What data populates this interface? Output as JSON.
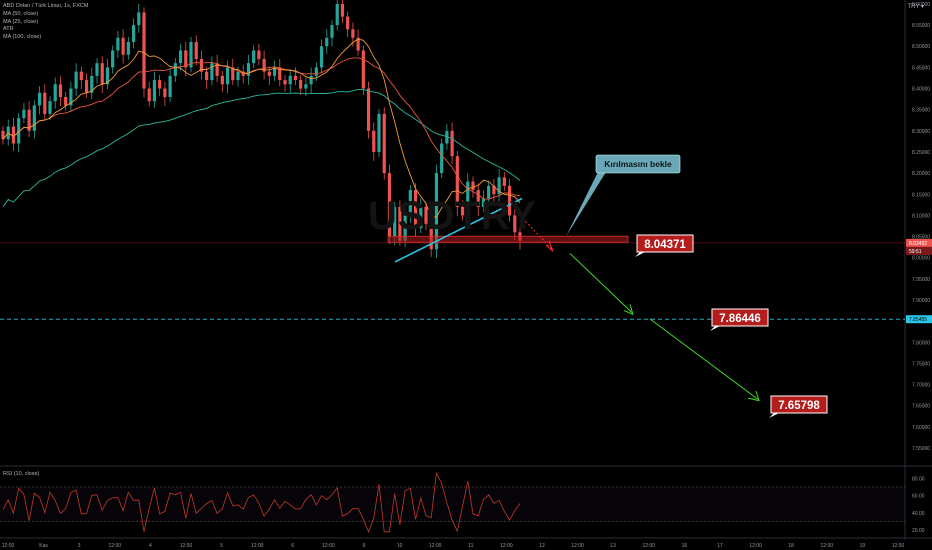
{
  "header": {
    "symbol": "ABD Doları / Türk Lirası, 1s, FXCM",
    "indicators": [
      "MA (50, close)",
      "MA (25, close)",
      "ATR",
      "MA (100, close)"
    ],
    "currency": "TRY"
  },
  "watermark": "USDTRY",
  "rsi_label": "RSI (10, close)",
  "colors": {
    "background": "#000000",
    "up": "#26a69a",
    "down": "#ef5350",
    "ma50": "#e8553d",
    "ma25": "#f29b38",
    "ma100": "#2bb89b",
    "trendline": "#29c6e8",
    "target_arrow": "#3fd926",
    "break_arrow": "#ff2b2b",
    "label_bg": "#b51c1c",
    "callout": "#6aa8b8"
  },
  "chart_data": [
    {
      "type": "candlestick",
      "title": "ABD Doları / Türk Lirası, 1s, FXCM",
      "ylim": [
        7.53,
        8.65
      ],
      "y_ticks": [
        7.55,
        7.6,
        7.65,
        7.7,
        7.75,
        7.8,
        7.85,
        7.9,
        7.95,
        8.0,
        8.05,
        8.1,
        8.15,
        8.2,
        8.25,
        8.3,
        8.35,
        8.4,
        8.45,
        8.5,
        8.55,
        8.6
      ],
      "y_tick_labels": [
        "7.55000",
        "7.60000",
        "7.65000",
        "7.70000",
        "7.75000",
        "7.80000",
        "7.85000",
        "7.90000",
        "7.95000",
        "8.00000",
        "8.05000",
        "8.10000",
        "8.15000",
        "8.20000",
        "8.25000",
        "8.30000",
        "8.35000",
        "8.40000",
        "8.45000",
        "8.50000",
        "8.55000",
        "8.60000"
      ],
      "x_tick_labels": [
        "12:00",
        "Kas",
        "3",
        "12:00",
        "4",
        "12:00",
        "5",
        "12:00",
        "6",
        "12:00",
        "9",
        "10",
        "12:00",
        "11",
        "12:00",
        "12",
        "12:00",
        "13",
        "12:00",
        "16",
        "17",
        "12:00",
        "18",
        "12:00",
        "19",
        "12:00"
      ],
      "current_price_label": "8.03492",
      "current_time_label": "59:51",
      "target_price_label": "7.85455",
      "close_series_up_to_now": [
        8.28,
        8.31,
        8.27,
        8.33,
        8.35,
        8.3,
        8.36,
        8.39,
        8.34,
        8.37,
        8.41,
        8.38,
        8.36,
        8.4,
        8.44,
        8.42,
        8.39,
        8.43,
        8.46,
        8.41,
        8.45,
        8.49,
        8.52,
        8.48,
        8.51,
        8.55,
        8.58,
        8.4,
        8.37,
        8.42,
        8.4,
        8.38,
        8.43,
        8.46,
        8.49,
        8.45,
        8.51,
        8.47,
        8.44,
        8.42,
        8.46,
        8.43,
        8.41,
        8.45,
        8.42,
        8.44,
        8.43,
        8.46,
        8.49,
        8.47,
        8.44,
        8.43,
        8.45,
        8.42,
        8.41,
        8.43,
        8.42,
        8.4,
        8.41,
        8.43,
        8.45,
        8.5,
        8.52,
        8.55,
        8.6,
        8.57,
        8.54,
        8.52,
        8.49,
        8.4,
        8.3,
        8.25,
        8.34,
        8.2,
        8.05,
        8.12,
        8.04,
        8.1,
        8.16,
        8.07,
        8.12,
        8.08,
        8.02,
        8.2,
        8.27,
        8.3,
        8.24,
        8.12,
        8.1,
        8.18,
        8.16,
        8.12,
        8.14,
        8.17,
        8.15,
        8.19,
        8.17,
        8.1,
        8.06,
        8.04
      ]
    },
    {
      "type": "line",
      "title": "RSI (10, close)",
      "ylim": [
        12,
        92
      ],
      "y_ticks": [
        20,
        40,
        60,
        80
      ],
      "y_tick_labels": [
        "20.00",
        "40.00",
        "60.00",
        "80.00"
      ],
      "guide_lines": [
        70,
        30
      ]
    }
  ],
  "annotations": {
    "callout": "Kırılmasını bekle",
    "support_level": "8.04371",
    "target_1": "7.86446",
    "target_2": "7.65798"
  }
}
